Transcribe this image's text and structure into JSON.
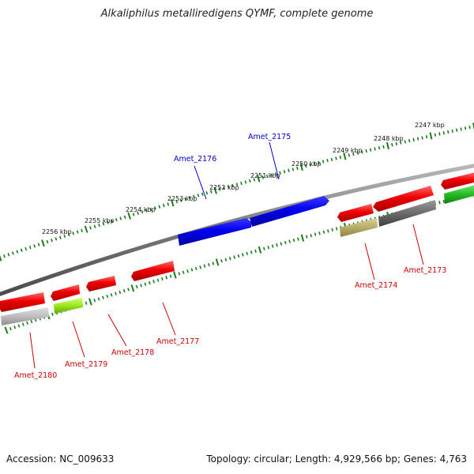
{
  "title": "Alkaliphilus metalliredigens QYMF, complete genome",
  "footer": {
    "accession": "Accession: NC_009633",
    "summary": "Topology: circular; Length: 4,929,566 bp; Genes: 4,763"
  },
  "kbp_ticks": [
    "2247 kbp",
    "2248 kbp",
    "2249 kbp",
    "2250 kbp",
    "2251 kbp",
    "2252 kbp",
    "2253 kbp",
    "2254 kbp",
    "2255 kbp",
    "2256 kbp"
  ],
  "genes_forward": [
    {
      "name": "Amet_2176",
      "color": "#0000ee"
    },
    {
      "name": "Amet_2175",
      "color": "#0000ee"
    }
  ],
  "genes_reverse": [
    {
      "name": "Amet_2174",
      "color": "#dd0000"
    },
    {
      "name": "Amet_2173",
      "color": "#dd0000"
    },
    {
      "name": "Amet_2177",
      "color": "#dd0000"
    },
    {
      "name": "Amet_2178",
      "color": "#dd0000"
    },
    {
      "name": "Amet_2179",
      "color": "#dd0000"
    },
    {
      "name": "Amet_2180",
      "color": "#dd0000"
    }
  ],
  "colors": {
    "backbone": "#7a7a7a",
    "tick_green": "#1e7a1e",
    "label_blue": "#0000cc",
    "label_red": "#cc0000"
  }
}
